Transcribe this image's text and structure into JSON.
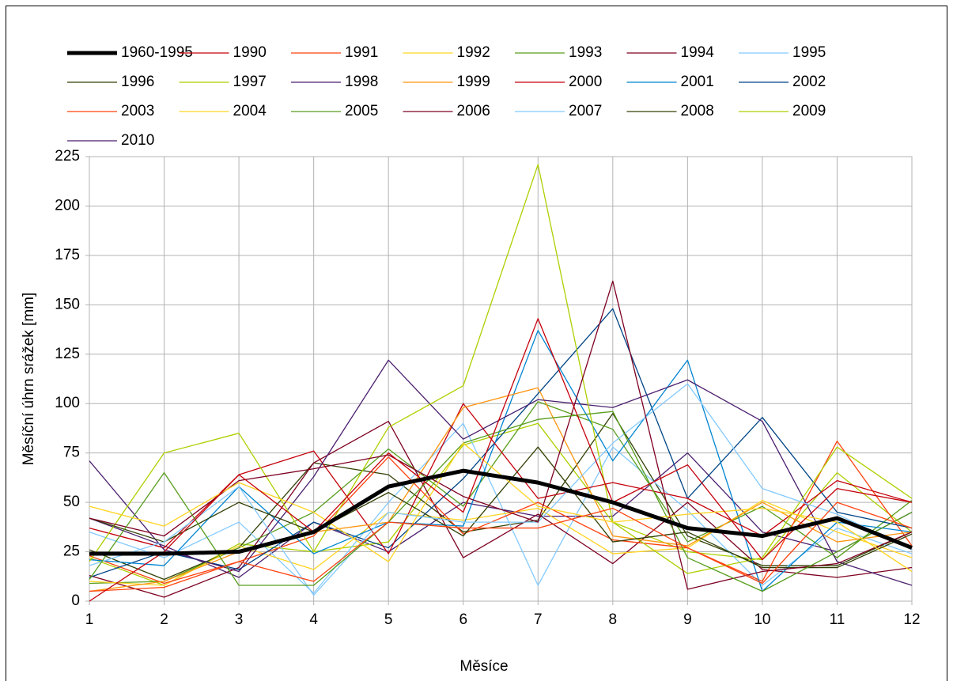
{
  "chart_data": {
    "type": "line",
    "x_label": "Měsíce",
    "y_label": "Měsíční úhrn srážek [mm]",
    "x": [
      1,
      2,
      3,
      4,
      5,
      6,
      7,
      8,
      9,
      10,
      11,
      12
    ],
    "xlim": [
      1,
      12
    ],
    "xticks": [
      1,
      2,
      3,
      4,
      5,
      6,
      7,
      8,
      9,
      10,
      11,
      12
    ],
    "ylim": [
      0,
      225
    ],
    "yticks": [
      0,
      25,
      50,
      75,
      100,
      125,
      150,
      175,
      200,
      225
    ],
    "grid": true,
    "legend": "top",
    "series": [
      {
        "name": "1960-1995",
        "color": "#000000",
        "width": 5,
        "values": [
          24,
          24,
          25,
          35,
          58,
          66,
          60,
          50,
          37,
          33,
          42,
          27
        ]
      },
      {
        "name": "1990",
        "color": "#c5000b",
        "values": [
          0,
          25,
          64,
          35,
          75,
          45,
          143,
          50,
          69,
          21,
          57,
          50
        ]
      },
      {
        "name": "1991",
        "color": "#ff420e",
        "values": [
          5,
          7,
          20,
          10,
          40,
          37,
          37,
          47,
          27,
          9,
          50,
          37
        ]
      },
      {
        "name": "1992",
        "color": "#ffd320",
        "values": [
          48,
          38,
          60,
          45,
          20,
          80,
          48,
          40,
          44,
          47,
          40,
          15
        ]
      },
      {
        "name": "1993",
        "color": "#579d1c",
        "values": [
          11,
          65,
          8,
          8,
          40,
          80,
          92,
          96,
          22,
          5,
          25,
          45
        ]
      },
      {
        "name": "1994",
        "color": "#7e0021",
        "values": [
          42,
          33,
          61,
          67,
          74,
          53,
          40,
          162,
          6,
          15,
          19,
          35
        ]
      },
      {
        "name": "1995",
        "color": "#83caff",
        "values": [
          18,
          30,
          58,
          3,
          45,
          40,
          40,
          80,
          110,
          57,
          44,
          26
        ]
      },
      {
        "name": "1996",
        "color": "#314004",
        "values": [
          42,
          30,
          50,
          35,
          55,
          33,
          78,
          30,
          35,
          17,
          17,
          34
        ]
      },
      {
        "name": "1997",
        "color": "#aecf00",
        "values": [
          20,
          75,
          85,
          25,
          88,
          109,
          221,
          40,
          14,
          22,
          78,
          52
        ]
      },
      {
        "name": "1998",
        "color": "#4b1f6f",
        "values": [
          71,
          26,
          15,
          63,
          122,
          82,
          102,
          98,
          112,
          91,
          20,
          8
        ]
      },
      {
        "name": "1999",
        "color": "#ff950e",
        "values": [
          5,
          10,
          25,
          35,
          40,
          98,
          108,
          33,
          28,
          50,
          30,
          35
        ]
      },
      {
        "name": "2000",
        "color": "#c5000b",
        "values": [
          37,
          27,
          64,
          76,
          24,
          100,
          52,
          60,
          52,
          33,
          61,
          50
        ]
      },
      {
        "name": "2001",
        "color": "#0084d1",
        "values": [
          21,
          18,
          58,
          24,
          40,
          38,
          137,
          71,
          122,
          5,
          40,
          35
        ]
      },
      {
        "name": "2002",
        "color": "#004586",
        "values": [
          12,
          25,
          16,
          40,
          27,
          62,
          105,
          148,
          52,
          93,
          45,
          37
        ]
      },
      {
        "name": "2003",
        "color": "#ff420e",
        "values": [
          23,
          9,
          20,
          33,
          73,
          34,
          50,
          31,
          27,
          10,
          81,
          28
        ]
      },
      {
        "name": "2004",
        "color": "#ffd320",
        "values": [
          10,
          8,
          28,
          16,
          45,
          41,
          47,
          24,
          27,
          51,
          35,
          22
        ]
      },
      {
        "name": "2005",
        "color": "#579d1c",
        "values": [
          9,
          10,
          27,
          45,
          77,
          48,
          101,
          87,
          30,
          48,
          22,
          51
        ]
      },
      {
        "name": "2006",
        "color": "#7e0021",
        "values": [
          13,
          2,
          17,
          70,
          91,
          22,
          44,
          19,
          50,
          16,
          12,
          17
        ]
      },
      {
        "name": "2007",
        "color": "#83caff",
        "values": [
          35,
          22,
          40,
          4,
          50,
          90,
          8,
          78,
          46,
          8,
          37,
          24
        ]
      },
      {
        "name": "2008",
        "color": "#314004",
        "values": [
          26,
          11,
          27,
          70,
          64,
          35,
          41,
          95,
          33,
          18,
          18,
          35
        ]
      },
      {
        "name": "2009",
        "color": "#aecf00",
        "values": [
          22,
          8,
          29,
          25,
          30,
          79,
          90,
          40,
          25,
          21,
          65,
          35
        ]
      },
      {
        "name": "2010",
        "color": "#4b1f6f",
        "values": [
          42,
          28,
          12,
          40,
          25,
          50,
          43,
          43,
          75,
          35,
          25,
          45
        ]
      }
    ]
  }
}
